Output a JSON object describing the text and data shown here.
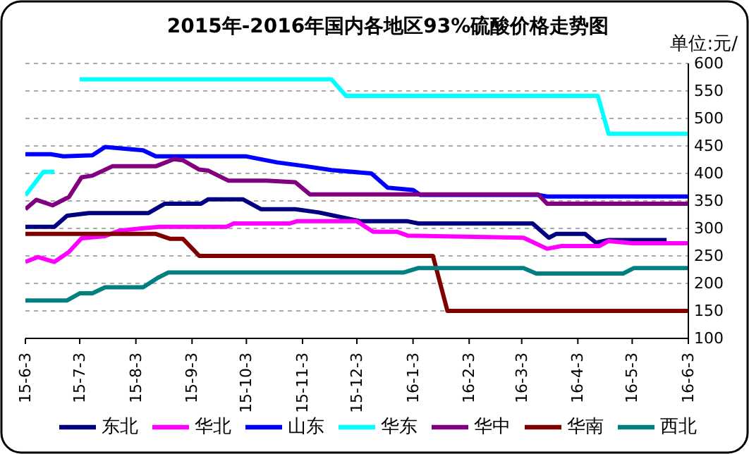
{
  "chart_data": {
    "type": "line",
    "title": "2015年-2016年国内各地区93%硫酸价格走势图",
    "annotations": [
      "单位:元/"
    ],
    "xlim": [
      "2015-06-03",
      "2016-06-03"
    ],
    "xticks": [
      {
        "value": "2015-06-03",
        "label": "15-6-3"
      },
      {
        "value": "2015-07-03",
        "label": "15-7-3"
      },
      {
        "value": "2015-08-03",
        "label": "15-8-3"
      },
      {
        "value": "2015-09-03",
        "label": "15-9-3"
      },
      {
        "value": "2015-10-03",
        "label": "15-10-3"
      },
      {
        "value": "2015-11-03",
        "label": "15-11-3"
      },
      {
        "value": "2015-12-03",
        "label": "15-12-3"
      },
      {
        "value": "2016-01-03",
        "label": "16-1-3"
      },
      {
        "value": "2016-02-03",
        "label": "16-2-3"
      },
      {
        "value": "2016-03-03",
        "label": "16-3-3"
      },
      {
        "value": "2016-04-03",
        "label": "16-4-3"
      },
      {
        "value": "2016-05-03",
        "label": "16-5-3"
      },
      {
        "value": "2016-06-03",
        "label": "16-6-3"
      }
    ],
    "ylim": [
      100,
      600
    ],
    "yticks": [
      100,
      150,
      200,
      250,
      300,
      350,
      400,
      450,
      500,
      550,
      600
    ],
    "grid": "y",
    "legend": "bottom",
    "marker": "none",
    "line_style": "solid",
    "series": [
      {
        "name": "东北",
        "color": "#000080",
        "x": [
          "2015-06-03",
          "2015-06-19",
          "2015-06-26",
          "2015-07-08",
          "2015-08-10",
          "2015-08-19",
          "2015-09-08",
          "2015-09-12",
          "2015-10-01",
          "2015-10-11",
          "2015-10-30",
          "2015-11-12",
          "2015-12-05",
          "2015-12-31",
          "2016-01-06",
          "2016-03-09",
          "2016-03-18",
          "2016-03-22",
          "2016-04-07",
          "2016-04-13",
          "2016-04-20",
          "2016-05-22"
        ],
        "values": [
          303,
          303,
          323,
          328,
          328,
          345,
          345,
          353,
          353,
          335,
          335,
          329,
          313,
          313,
          309,
          309,
          283,
          290,
          290,
          274,
          279,
          279
        ]
      },
      {
        "name": "华北",
        "color": "#ff00ff",
        "x": [
          "2015-06-03",
          "2015-06-10",
          "2015-06-19",
          "2015-06-27",
          "2015-07-04",
          "2015-07-17",
          "2015-07-25",
          "2015-08-03",
          "2015-08-16",
          "2015-09-22",
          "2015-09-26",
          "2015-10-27",
          "2015-10-31",
          "2015-12-03",
          "2015-12-12",
          "2015-12-25",
          "2015-12-31",
          "2016-03-04",
          "2016-03-17",
          "2016-03-25",
          "2016-04-15",
          "2016-04-20",
          "2016-05-03",
          "2016-06-03"
        ],
        "values": [
          239,
          248,
          239,
          257,
          282,
          286,
          296,
          299,
          303,
          303,
          309,
          309,
          313,
          313,
          294,
          294,
          287,
          283,
          263,
          268,
          268,
          277,
          273,
          273
        ]
      },
      {
        "name": "山东",
        "color": "#0000ff",
        "x": [
          "2015-06-03",
          "2015-06-17",
          "2015-06-24",
          "2015-07-10",
          "2015-07-17",
          "2015-08-07",
          "2015-08-14",
          "2015-10-03",
          "2015-10-20",
          "2015-11-05",
          "2015-11-19",
          "2015-12-11",
          "2015-12-20",
          "2016-01-03",
          "2016-01-07",
          "2016-03-12",
          "2016-03-17",
          "2016-06-03"
        ],
        "values": [
          435,
          435,
          431,
          433,
          448,
          442,
          431,
          431,
          420,
          413,
          406,
          400,
          374,
          370,
          361,
          361,
          358,
          358
        ]
      },
      {
        "name": "华东",
        "color": "#00ffff",
        "x": [
          "2015-06-03",
          "2015-06-13",
          "2015-06-19",
          "2015-06-26",
          "2015-07-03",
          "2015-11-19",
          "2015-11-27",
          "2016-04-14",
          "2016-04-20",
          "2016-06-03"
        ],
        "values": [
          360,
          403,
          403,
          null,
          571,
          571,
          541,
          541,
          472,
          472
        ]
      },
      {
        "name": "华中",
        "color": "#800080",
        "x": [
          "2015-06-03",
          "2015-06-09",
          "2015-06-18",
          "2015-06-27",
          "2015-07-04",
          "2015-07-10",
          "2015-07-21",
          "2015-08-14",
          "2015-08-24",
          "2015-08-29",
          "2015-09-07",
          "2015-09-12",
          "2015-09-23",
          "2015-10-14",
          "2015-10-30",
          "2015-11-07",
          "2016-03-12",
          "2016-03-17",
          "2016-06-03"
        ],
        "values": [
          335,
          352,
          342,
          357,
          393,
          396,
          413,
          413,
          426,
          424,
          407,
          405,
          387,
          387,
          384,
          362,
          362,
          345,
          345
        ]
      },
      {
        "name": "华南",
        "color": "#800000",
        "x": [
          "2015-06-03",
          "2015-08-14",
          "2015-08-22",
          "2015-08-29",
          "2015-09-07",
          "2016-01-14",
          "2016-01-22",
          "2016-06-03"
        ],
        "values": [
          290,
          290,
          281,
          281,
          250,
          250,
          150,
          150
        ]
      },
      {
        "name": "西北",
        "color": "#008080",
        "x": [
          "2015-06-03",
          "2015-06-26",
          "2015-07-03",
          "2015-07-10",
          "2015-07-17",
          "2015-08-07",
          "2015-08-15",
          "2015-08-21",
          "2015-12-29",
          "2016-01-06",
          "2016-03-04",
          "2016-03-11",
          "2016-04-28",
          "2016-05-04",
          "2016-06-03"
        ],
        "values": [
          169,
          169,
          182,
          182,
          193,
          193,
          210,
          220,
          220,
          228,
          228,
          218,
          218,
          228,
          228
        ]
      }
    ]
  }
}
